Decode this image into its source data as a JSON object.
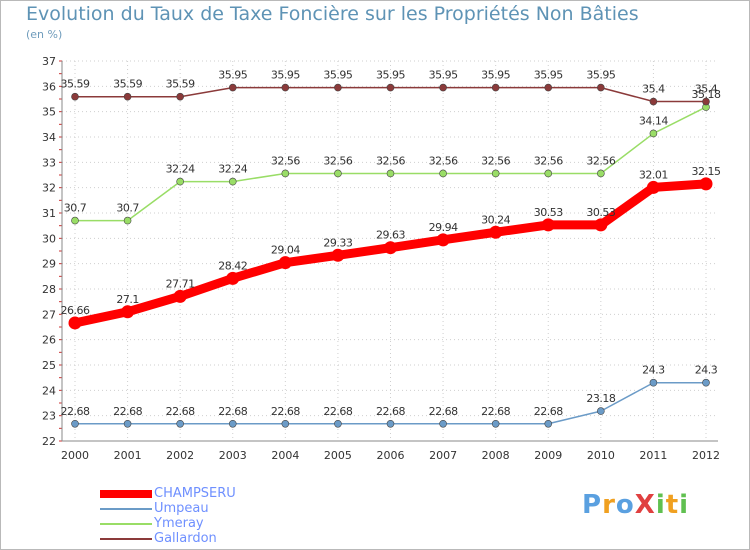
{
  "chart_data": {
    "type": "line",
    "title": "Evolution du Taux de Taxe Foncière sur les Propriétés Non Bâties",
    "subtitle": "(en %)",
    "xlabel": "",
    "ylabel": "",
    "categories": [
      "2000",
      "2001",
      "2002",
      "2003",
      "2004",
      "2005",
      "2006",
      "2007",
      "2008",
      "2009",
      "2010",
      "2011",
      "2012"
    ],
    "ylim": [
      22,
      37
    ],
    "yticks": [
      22,
      23,
      24,
      25,
      26,
      27,
      28,
      29,
      30,
      31,
      32,
      33,
      34,
      35,
      36,
      37
    ],
    "grid": true,
    "legend_position": "bottom-left",
    "series": [
      {
        "name": "CHAMPSERU",
        "color": "#ff0000",
        "values": [
          26.66,
          27.1,
          27.71,
          28.42,
          29.04,
          29.33,
          29.63,
          29.94,
          30.24,
          30.53,
          30.53,
          32.01,
          32.15
        ],
        "labels": [
          "26.66",
          "27.1",
          "27.71",
          "28.42",
          "29.04",
          "29.33",
          "29.63",
          "29.94",
          "30.24",
          "30.53",
          "30.53",
          "32.01",
          "32.15"
        ]
      },
      {
        "name": "Umpeau",
        "color": "#6b9bc7",
        "values": [
          22.68,
          22.68,
          22.68,
          22.68,
          22.68,
          22.68,
          22.68,
          22.68,
          22.68,
          22.68,
          23.18,
          24.3,
          24.3
        ],
        "labels": [
          "22.68",
          "22.68",
          "22.68",
          "22.68",
          "22.68",
          "22.68",
          "22.68",
          "22.68",
          "22.68",
          "22.68",
          "23.18",
          "24.3",
          "24.3"
        ]
      },
      {
        "name": "Ymeray",
        "color": "#99dd66",
        "values": [
          30.7,
          30.7,
          32.24,
          32.24,
          32.56,
          32.56,
          32.56,
          32.56,
          32.56,
          32.56,
          32.56,
          34.14,
          35.18
        ],
        "labels": [
          "30.7",
          "30.7",
          "32.24",
          "32.24",
          "32.56",
          "32.56",
          "32.56",
          "32.56",
          "32.56",
          "32.56",
          "32.56",
          "34.14",
          "35.18"
        ]
      },
      {
        "name": "Gallardon",
        "color": "#8b3a3a",
        "values": [
          35.59,
          35.59,
          35.59,
          35.95,
          35.95,
          35.95,
          35.95,
          35.95,
          35.95,
          35.95,
          35.95,
          35.4,
          35.4
        ],
        "labels": [
          "35.59",
          "35.59",
          "35.59",
          "35.95",
          "35.95",
          "35.95",
          "35.95",
          "35.95",
          "35.95",
          "35.95",
          "35.95",
          "35.4",
          "35.4"
        ]
      }
    ]
  },
  "logo": {
    "text": "ProXiti",
    "letters": [
      "P",
      "r",
      "o",
      "X",
      "i",
      "t",
      "i"
    ],
    "colors": [
      "#5aa0e0",
      "#f0a020",
      "#5aa0e0",
      "#e04040",
      "#60c050",
      "#f0a020",
      "#60c050"
    ]
  }
}
